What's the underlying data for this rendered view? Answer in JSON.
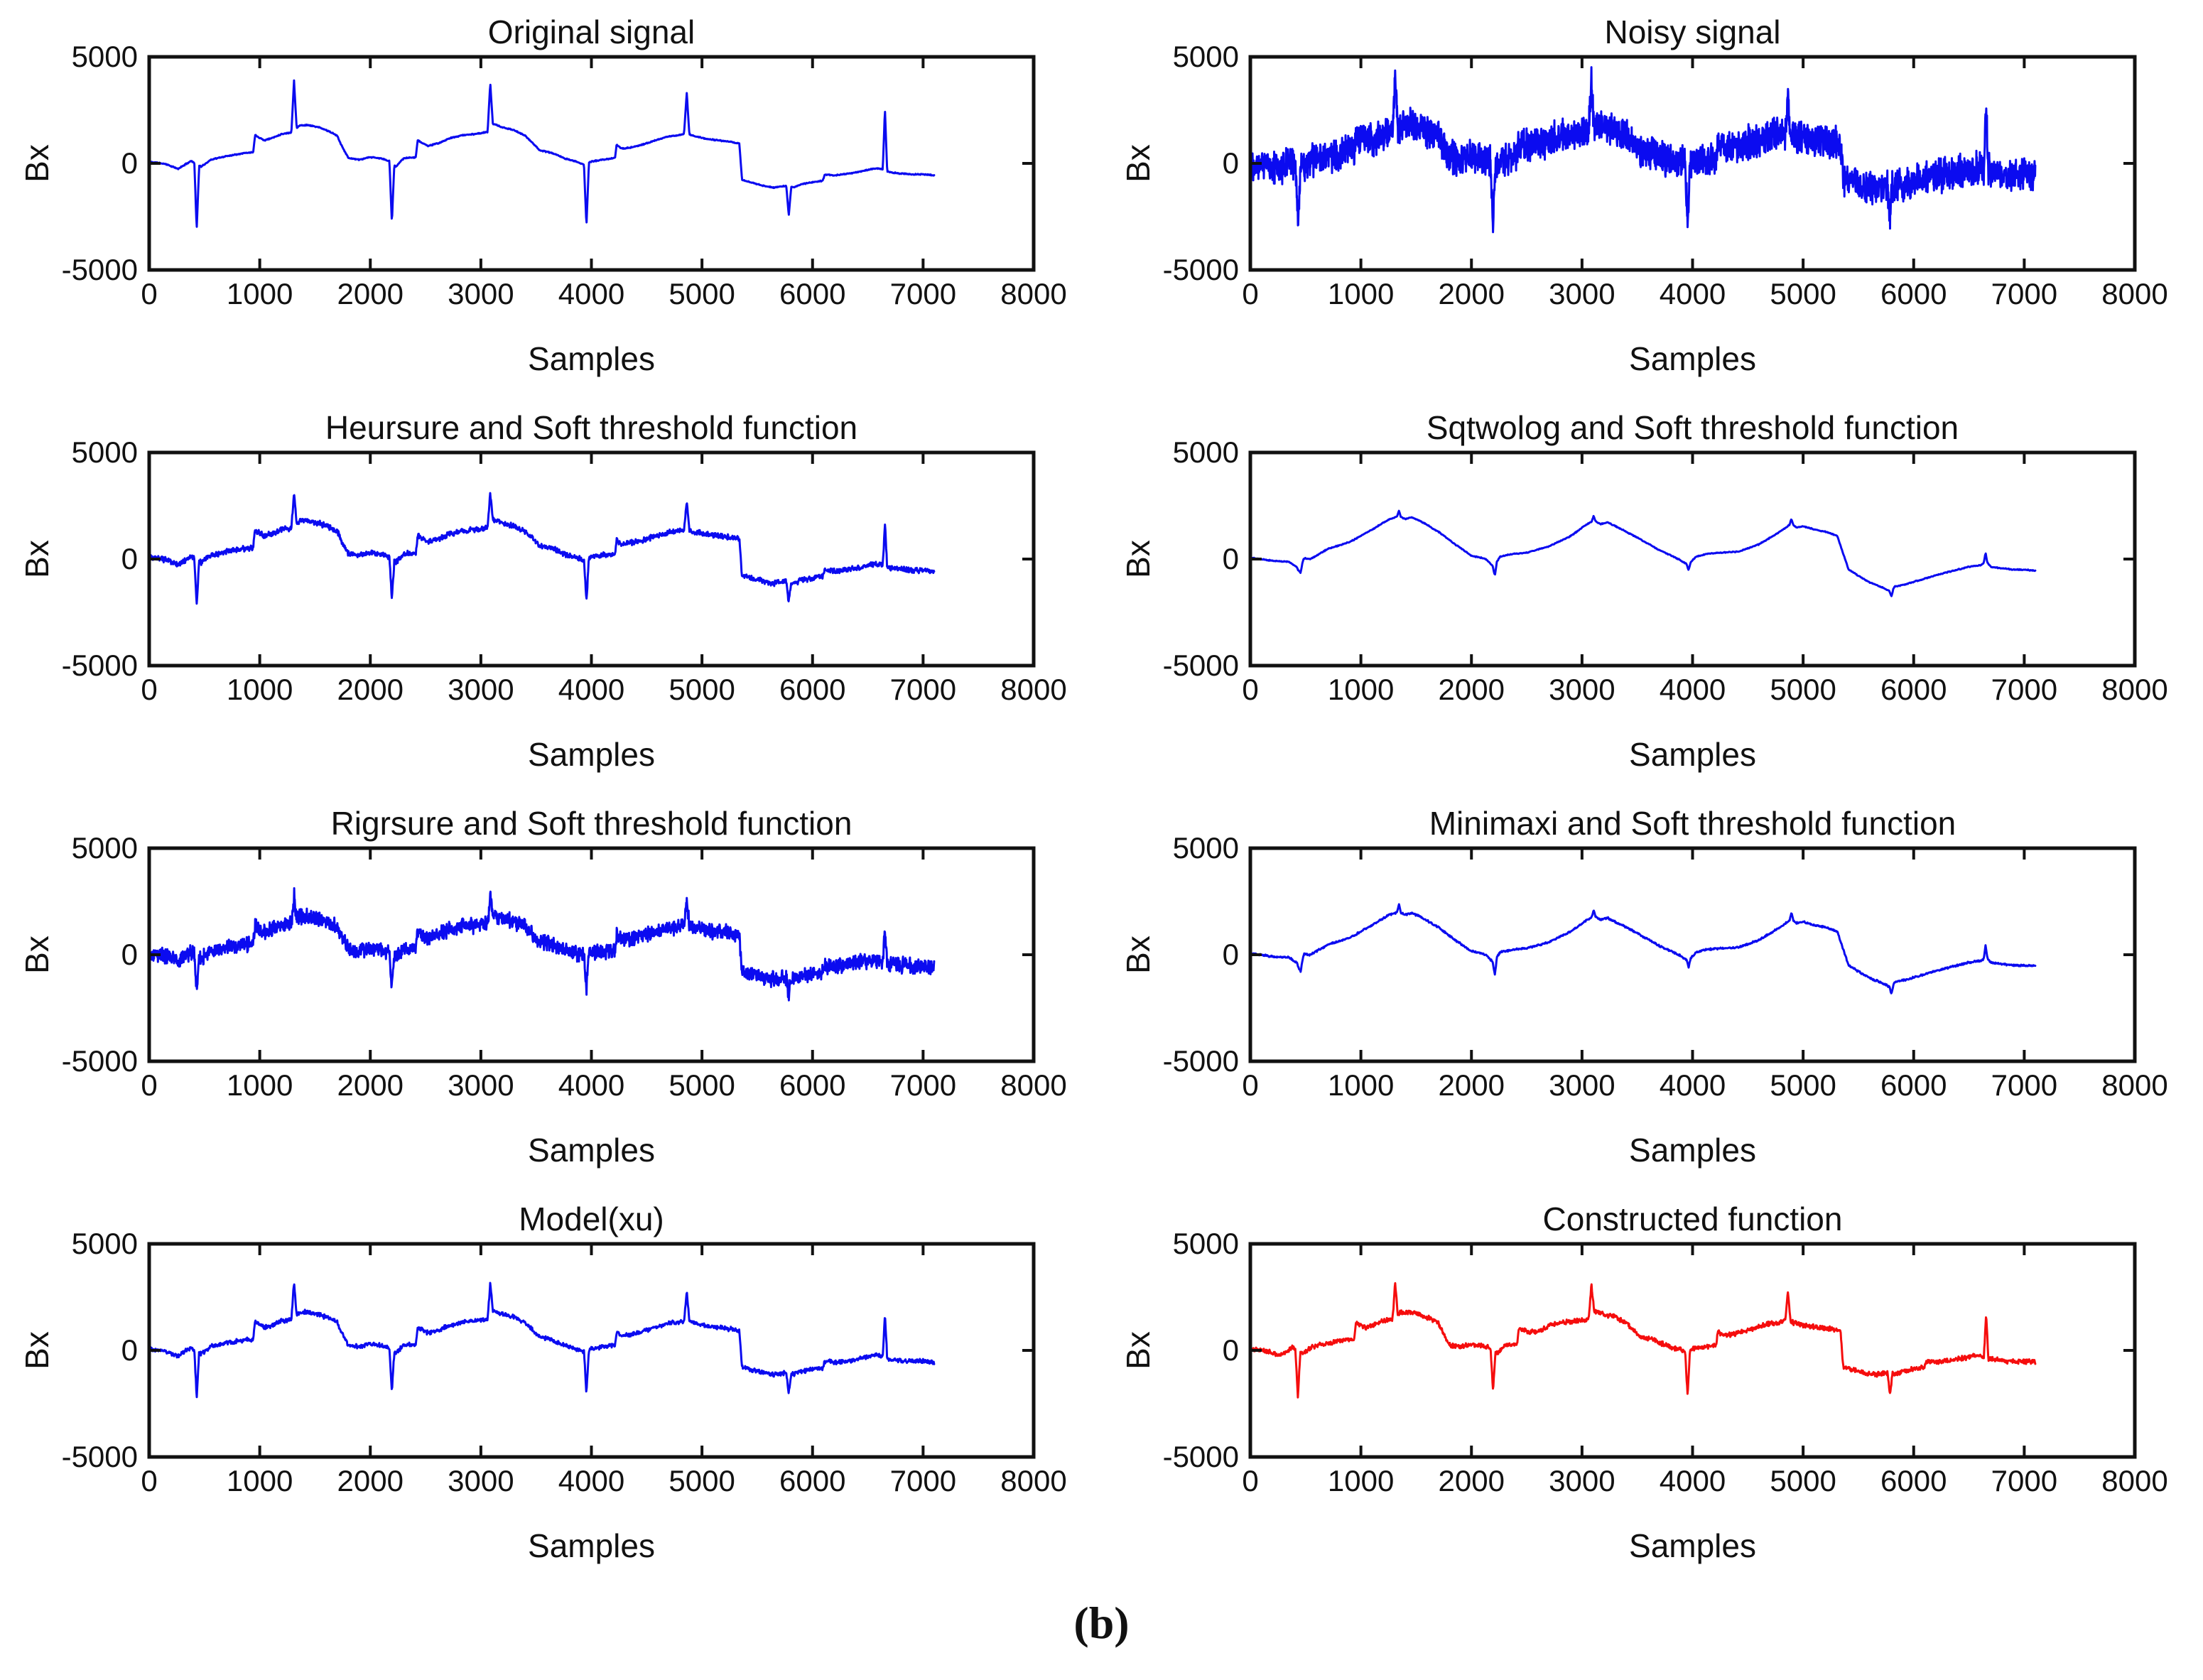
{
  "figure": {
    "caption": "(b)"
  },
  "colors": {
    "signal_blue": "#0b0bf0",
    "signal_red": "#f50d0d",
    "axis": "#111111"
  },
  "signal_bases": {
    "original": [
      [
        0,
        80
      ],
      [
        150,
        -30
      ],
      [
        260,
        -260
      ],
      [
        380,
        120
      ],
      [
        470,
        -160
      ],
      [
        560,
        180
      ],
      [
        700,
        340
      ],
      [
        850,
        480
      ],
      [
        940,
        520
      ],
      [
        958,
        1330
      ],
      [
        1040,
        1080
      ],
      [
        1100,
        1170
      ],
      [
        1200,
        1380
      ],
      [
        1300,
        1460
      ],
      [
        1360,
        1780
      ],
      [
        1430,
        1800
      ],
      [
        1530,
        1700
      ],
      [
        1620,
        1520
      ],
      [
        1700,
        1300
      ],
      [
        1735,
        900
      ],
      [
        1800,
        260
      ],
      [
        1900,
        170
      ],
      [
        2000,
        290
      ],
      [
        2100,
        230
      ],
      [
        2170,
        110
      ],
      [
        2230,
        -150
      ],
      [
        2300,
        230
      ],
      [
        2400,
        290
      ],
      [
        2412,
        300
      ],
      [
        2428,
        1080
      ],
      [
        2520,
        820
      ],
      [
        2620,
        950
      ],
      [
        2720,
        1180
      ],
      [
        2830,
        1320
      ],
      [
        2950,
        1380
      ],
      [
        3060,
        1470
      ],
      [
        3115,
        1850
      ],
      [
        3200,
        1680
      ],
      [
        3300,
        1560
      ],
      [
        3400,
        1300
      ],
      [
        3480,
        900
      ],
      [
        3530,
        620
      ],
      [
        3650,
        480
      ],
      [
        3760,
        230
      ],
      [
        3870,
        70
      ],
      [
        3940,
        -70
      ],
      [
        4000,
        90
      ],
      [
        4100,
        170
      ],
      [
        4200,
        240
      ],
      [
        4213,
        250
      ],
      [
        4228,
        880
      ],
      [
        4270,
        700
      ],
      [
        4350,
        740
      ],
      [
        4450,
        860
      ],
      [
        4550,
        1030
      ],
      [
        4700,
        1270
      ],
      [
        4800,
        1330
      ],
      [
        4858,
        1420
      ],
      [
        4920,
        1300
      ],
      [
        5040,
        1150
      ],
      [
        5150,
        1080
      ],
      [
        5250,
        1010
      ],
      [
        5338,
        940
      ],
      [
        5362,
        -780
      ],
      [
        5450,
        -900
      ],
      [
        5560,
        -1060
      ],
      [
        5650,
        -1140
      ],
      [
        5740,
        -1060
      ],
      [
        5830,
        -1120
      ],
      [
        5900,
        -980
      ],
      [
        6000,
        -880
      ],
      [
        6090,
        -820
      ],
      [
        6112,
        -520
      ],
      [
        6200,
        -560
      ],
      [
        6350,
        -460
      ],
      [
        6500,
        -310
      ],
      [
        6560,
        -230
      ],
      [
        6620,
        -260
      ],
      [
        6700,
        -420
      ],
      [
        6800,
        -480
      ],
      [
        6900,
        -520
      ],
      [
        7000,
        -510
      ],
      [
        7100,
        -560
      ]
    ],
    "smooth": [
      [
        0,
        60
      ],
      [
        200,
        -80
      ],
      [
        350,
        -130
      ],
      [
        430,
        -420
      ],
      [
        470,
        60
      ],
      [
        540,
        -10
      ],
      [
        700,
        470
      ],
      [
        900,
        800
      ],
      [
        1100,
        1380
      ],
      [
        1250,
        1850
      ],
      [
        1340,
        2020
      ],
      [
        1400,
        1880
      ],
      [
        1460,
        1960
      ],
      [
        1540,
        1780
      ],
      [
        1700,
        1290
      ],
      [
        1850,
        700
      ],
      [
        2000,
        160
      ],
      [
        2130,
        10
      ],
      [
        2200,
        -380
      ],
      [
        2260,
        120
      ],
      [
        2380,
        240
      ],
      [
        2500,
        300
      ],
      [
        2700,
        590
      ],
      [
        2900,
        1090
      ],
      [
        3040,
        1620
      ],
      [
        3110,
        1800
      ],
      [
        3170,
        1640
      ],
      [
        3230,
        1730
      ],
      [
        3330,
        1470
      ],
      [
        3500,
        1010
      ],
      [
        3700,
        420
      ],
      [
        3880,
        -20
      ],
      [
        3960,
        -290
      ],
      [
        4030,
        110
      ],
      [
        4130,
        250
      ],
      [
        4250,
        300
      ],
      [
        4420,
        350
      ],
      [
        4600,
        690
      ],
      [
        4790,
        1280
      ],
      [
        4890,
        1650
      ],
      [
        4940,
        1480
      ],
      [
        5000,
        1540
      ],
      [
        5100,
        1390
      ],
      [
        5200,
        1290
      ],
      [
        5310,
        1080
      ],
      [
        5410,
        -480
      ],
      [
        5500,
        -790
      ],
      [
        5600,
        -1090
      ],
      [
        5700,
        -1290
      ],
      [
        5790,
        -1530
      ],
      [
        5830,
        -1290
      ],
      [
        5920,
        -1190
      ],
      [
        6020,
        -1040
      ],
      [
        6200,
        -760
      ],
      [
        6400,
        -490
      ],
      [
        6520,
        -340
      ],
      [
        6610,
        -290
      ],
      [
        6655,
        -90
      ],
      [
        6700,
        -380
      ],
      [
        6800,
        -440
      ],
      [
        6900,
        -490
      ],
      [
        7000,
        -500
      ],
      [
        7100,
        -540
      ]
    ]
  },
  "spike_sets": {
    "original": [
      [
        430,
        -3050,
        22
      ],
      [
        1310,
        2400,
        24
      ],
      [
        2195,
        -2800,
        22
      ],
      [
        3085,
        2150,
        24
      ],
      [
        3955,
        -2900,
        22
      ],
      [
        4862,
        1900,
        24
      ],
      [
        5785,
        -1350,
        22
      ],
      [
        6655,
        2900,
        20
      ]
    ],
    "smooth": [
      [
        455,
        -520,
        30
      ],
      [
        1345,
        260,
        18
      ],
      [
        2212,
        -500,
        18
      ],
      [
        3105,
        240,
        18
      ],
      [
        3965,
        -250,
        18
      ],
      [
        4895,
        260,
        18
      ],
      [
        5800,
        -280,
        18
      ],
      [
        6650,
        400,
        16
      ]
    ]
  },
  "chart_data": [
    {
      "type": "line",
      "title": "Original signal",
      "xlabel": "Samples",
      "ylabel": "Bx",
      "x_range": [
        0,
        8000
      ],
      "y_range": [
        -5000,
        5000
      ],
      "x_ticks": [
        0,
        1000,
        2000,
        3000,
        4000,
        5000,
        6000,
        7000,
        8000
      ],
      "y_ticks": [
        5000,
        0,
        -5000
      ],
      "x_end": 7100,
      "base": "original",
      "spike_scale": 1,
      "noise": 30,
      "points": 1600,
      "seed": 11,
      "color": "#0b0bf0"
    },
    {
      "type": "line",
      "title": "Noisy signal",
      "xlabel": "Samples",
      "ylabel": "Bx",
      "x_range": [
        0,
        8000
      ],
      "y_range": [
        -5000,
        5000
      ],
      "x_ticks": [
        0,
        1000,
        2000,
        3000,
        4000,
        5000,
        6000,
        7000,
        8000
      ],
      "y_ticks": [
        5000,
        0,
        -5000
      ],
      "x_end": 7100,
      "base": "original",
      "spike_scale": 1,
      "noise": 900,
      "points": 3200,
      "seed": 22,
      "color": "#0b0bf0"
    },
    {
      "type": "line",
      "title": "Heursure and Soft threshold function",
      "xlabel": "Samples",
      "ylabel": "Bx",
      "x_range": [
        0,
        8000
      ],
      "y_range": [
        -5000,
        5000
      ],
      "x_ticks": [
        0,
        1000,
        2000,
        3000,
        4000,
        5000,
        6000,
        7000,
        8000
      ],
      "y_ticks": [
        5000,
        0,
        -5000
      ],
      "x_end": 7100,
      "base": "original",
      "spike_scale": 0.68,
      "noise": 150,
      "points": 1900,
      "seed": 33,
      "color": "#0b0bf0"
    },
    {
      "type": "line",
      "title": "Sqtwolog and Soft threshold function",
      "xlabel": "Samples",
      "ylabel": "Bx",
      "x_range": [
        0,
        8000
      ],
      "y_range": [
        -5000,
        5000
      ],
      "x_ticks": [
        0,
        1000,
        2000,
        3000,
        4000,
        5000,
        6000,
        7000,
        8000
      ],
      "y_ticks": [
        5000,
        0,
        -5000
      ],
      "x_end": 7100,
      "base": "smooth",
      "spike_scale": 1,
      "noise": 28,
      "points": 1300,
      "seed": 44,
      "color": "#0b0bf0"
    },
    {
      "type": "line",
      "title": "Rigrsure and Soft threshold function",
      "xlabel": "Samples",
      "ylabel": "Bx",
      "x_range": [
        0,
        8000
      ],
      "y_range": [
        -5000,
        5000
      ],
      "x_ticks": [
        0,
        1000,
        2000,
        3000,
        4000,
        5000,
        6000,
        7000,
        8000
      ],
      "y_ticks": [
        5000,
        0,
        -5000
      ],
      "x_end": 7100,
      "base": "original",
      "spike_scale": 0.55,
      "noise": 420,
      "points": 2600,
      "seed": 55,
      "color": "#0b0bf0"
    },
    {
      "type": "line",
      "title": "Minimaxi and Soft threshold function",
      "xlabel": "Samples",
      "ylabel": "Bx",
      "x_range": [
        0,
        8000
      ],
      "y_range": [
        -5000,
        5000
      ],
      "x_ticks": [
        0,
        1000,
        2000,
        3000,
        4000,
        5000,
        6000,
        7000,
        8000
      ],
      "y_ticks": [
        5000,
        0,
        -5000
      ],
      "x_end": 7100,
      "base": "smooth",
      "spike_scale": 1.3,
      "noise": 50,
      "points": 1500,
      "seed": 66,
      "color": "#0b0bf0"
    },
    {
      "type": "line",
      "title": "Model(xu)",
      "xlabel": "Samples",
      "ylabel": "Bx",
      "x_range": [
        0,
        8000
      ],
      "y_range": [
        -5000,
        5000
      ],
      "x_ticks": [
        0,
        1000,
        2000,
        3000,
        4000,
        5000,
        6000,
        7000,
        8000
      ],
      "y_ticks": [
        5000,
        0,
        -5000
      ],
      "x_end": 7100,
      "base": "original",
      "spike_scale": 0.7,
      "noise": 120,
      "points": 1700,
      "seed": 77,
      "color": "#0b0bf0"
    },
    {
      "type": "line",
      "title": "Constructed function",
      "xlabel": "Samples",
      "ylabel": "Bx",
      "x_range": [
        0,
        8000
      ],
      "y_range": [
        -5000,
        5000
      ],
      "x_ticks": [
        0,
        1000,
        2000,
        3000,
        4000,
        5000,
        6000,
        7000,
        8000
      ],
      "y_ticks": [
        5000,
        0,
        -5000
      ],
      "x_end": 7100,
      "base": "original",
      "spike_scale": 0.7,
      "noise": 130,
      "points": 1800,
      "seed": 88,
      "color": "#f50d0d"
    }
  ]
}
